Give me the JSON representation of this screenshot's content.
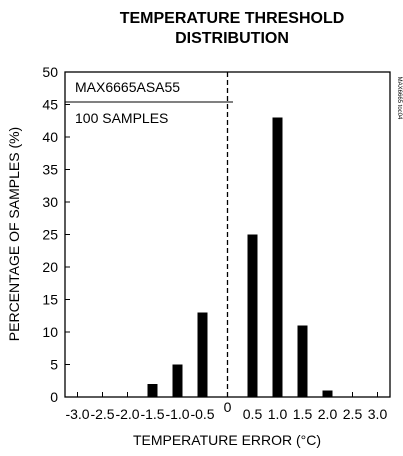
{
  "chart_data": {
    "type": "bar",
    "title_lines": [
      "TEMPERATURE THRESHOLD",
      "DISTRIBUTION"
    ],
    "xlabel": "TEMPERATURE ERROR (°C)",
    "ylabel": "PERCENTAGE OF SAMPLES (%)",
    "xlim": [
      -3.25,
      3.25
    ],
    "ylim": [
      0,
      50
    ],
    "xticks": [
      {
        "value": -3.0,
        "label": "-3.0"
      },
      {
        "value": -2.5,
        "label": "-2.5"
      },
      {
        "value": -2.0,
        "label": "-2.0"
      },
      {
        "value": -1.5,
        "label": "-1.5"
      },
      {
        "value": -1.0,
        "label": "-1.0"
      },
      {
        "value": -0.5,
        "label": "-0.5"
      },
      {
        "value": 0,
        "label": "0"
      },
      {
        "value": 0.5,
        "label": "0.5"
      },
      {
        "value": 1.0,
        "label": "1.0"
      },
      {
        "value": 1.5,
        "label": "1.5"
      },
      {
        "value": 2.0,
        "label": "2.0"
      },
      {
        "value": 2.5,
        "label": "2.5"
      },
      {
        "value": 3.0,
        "label": "3.0"
      }
    ],
    "yticks": [
      {
        "value": 0,
        "label": "0"
      },
      {
        "value": 5,
        "label": "5"
      },
      {
        "value": 10,
        "label": "10"
      },
      {
        "value": 15,
        "label": "15"
      },
      {
        "value": 20,
        "label": "20"
      },
      {
        "value": 25,
        "label": "25"
      },
      {
        "value": 30,
        "label": "30"
      },
      {
        "value": 35,
        "label": "35"
      },
      {
        "value": 40,
        "label": "40"
      },
      {
        "value": 45,
        "label": "45"
      },
      {
        "value": 50,
        "label": "50"
      }
    ],
    "bar_width": 0.2,
    "bars": [
      {
        "x": -1.5,
        "value": 2
      },
      {
        "x": -1.0,
        "value": 5
      },
      {
        "x": -0.5,
        "value": 13
      },
      {
        "x": 0.5,
        "value": 25
      },
      {
        "x": 1.0,
        "value": 43
      },
      {
        "x": 1.5,
        "value": 11
      },
      {
        "x": 2.0,
        "value": 1
      }
    ],
    "reference_line": {
      "x": 0,
      "style": "dashed"
    },
    "annotations": [
      "MAX6665ASA55",
      "100 SAMPLES"
    ],
    "side_id": "MAX6665 toc04",
    "grid": false,
    "colors": {
      "bar": "#000000",
      "axis": "#000000",
      "background": "#ffffff"
    }
  }
}
